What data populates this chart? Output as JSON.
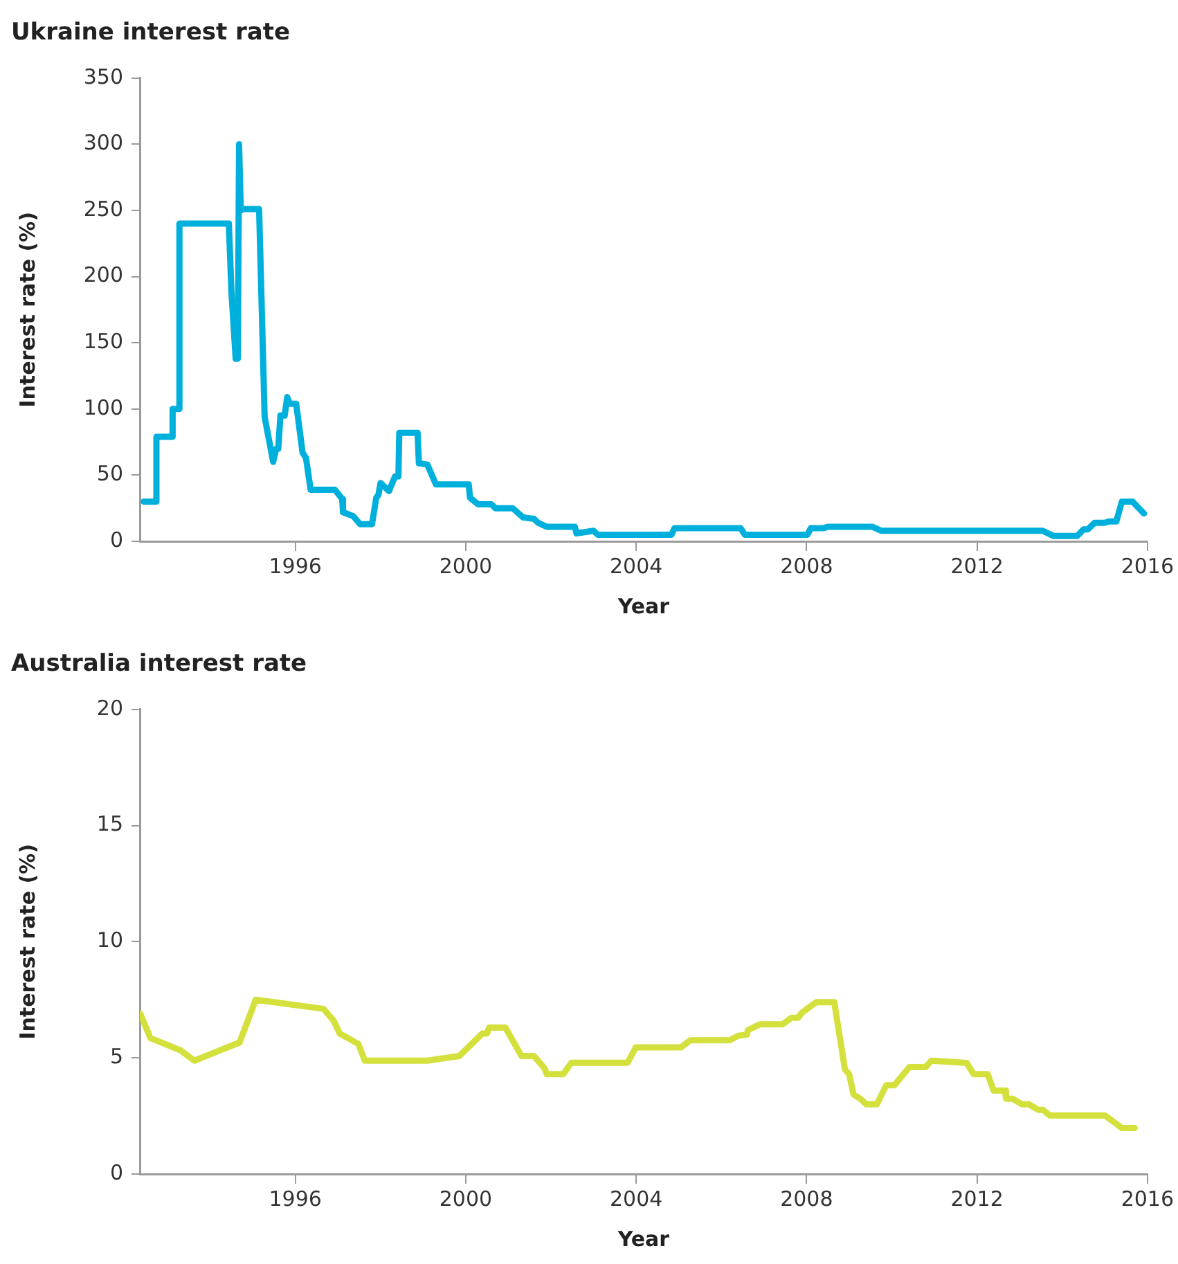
{
  "chart_data": [
    {
      "type": "line",
      "title": "Ukraine interest rate",
      "xlabel": "Year",
      "ylabel": "Interest rate (%)",
      "xlim": [
        1992.35,
        2016
      ],
      "xticks": [
        1996,
        2000,
        2004,
        2008,
        2012,
        2016
      ],
      "ylim": [
        0,
        350
      ],
      "yticks": [
        0,
        50,
        100,
        150,
        200,
        250,
        300,
        350
      ],
      "grid": false,
      "legend": false,
      "marker": "none",
      "line_style": "solid",
      "series": [
        {
          "color": "#00b0dc",
          "x": [
            1992.44,
            1992.74,
            1992.74,
            1993.12,
            1993.12,
            1993.28,
            1993.28,
            1994.44,
            1994.5,
            1994.6,
            1994.65,
            1994.68,
            1994.72,
            1994.75,
            1995.15,
            1995.28,
            1995.48,
            1995.55,
            1995.6,
            1995.65,
            1995.75,
            1995.81,
            1995.87,
            1996.02,
            1996.17,
            1996.25,
            1996.36,
            1996.93,
            1997.1,
            1997.12,
            1997.36,
            1997.52,
            1997.8,
            1997.9,
            1997.95,
            1998.0,
            1998.2,
            1998.34,
            1998.42,
            1998.44,
            1998.87,
            1998.9,
            1999.1,
            1999.3,
            2000.07,
            2000.1,
            2000.29,
            2000.6,
            2000.7,
            2001.1,
            2001.35,
            2001.6,
            2001.7,
            2001.9,
            2002.56,
            2002.6,
            2003.0,
            2003.1,
            2004.83,
            2004.9,
            2006.45,
            2006.55,
            2008.02,
            2008.1,
            2008.4,
            2008.5,
            2009.54,
            2009.75,
            2013.54,
            2013.8,
            2014.35,
            2014.5,
            2014.6,
            2014.76,
            2015.0,
            2015.1,
            2015.27,
            2015.4,
            2015.65,
            2015.92
          ],
          "values": [
            30,
            30,
            79,
            79,
            100,
            100,
            240,
            240,
            189,
            138,
            138,
            300,
            250,
            251,
            251,
            94,
            60,
            70,
            70,
            95,
            95,
            109,
            104,
            104,
            67,
            63,
            39,
            39,
            32,
            22,
            19,
            13,
            13,
            33,
            35,
            44,
            38,
            49,
            49,
            82,
            82,
            59,
            58,
            43,
            43,
            33,
            28,
            28,
            25,
            25,
            18,
            17,
            14,
            11,
            11,
            6,
            8,
            5,
            5,
            10,
            10,
            5,
            5,
            10,
            10,
            11,
            11,
            8,
            8,
            4,
            4,
            9,
            9,
            14,
            14,
            15,
            15,
            30,
            30,
            21
          ]
        }
      ]
    },
    {
      "type": "line",
      "title": "Australia interest rate",
      "xlabel": "Year",
      "ylabel": "Interest rate (%)",
      "xlim": [
        1992.35,
        2016
      ],
      "xticks": [
        1996,
        2000,
        2004,
        2008,
        2012,
        2016
      ],
      "ylim": [
        0,
        20
      ],
      "yticks": [
        0,
        5,
        10,
        15,
        20
      ],
      "grid": false,
      "legend": false,
      "marker": "none",
      "line_style": "solid",
      "series": [
        {
          "color": "#d4e03c",
          "x": [
            1992.36,
            1992.6,
            1993.3,
            1993.63,
            1994.69,
            1995.07,
            1996.66,
            1996.9,
            1997.04,
            1997.48,
            1997.63,
            1999.1,
            1999.85,
            2000.39,
            2000.5,
            2000.55,
            2000.93,
            2001.31,
            2001.6,
            2001.85,
            2001.9,
            2002.29,
            2002.48,
            2003.8,
            2003.99,
            2005.05,
            2005.27,
            2006.19,
            2006.4,
            2006.6,
            2006.62,
            2006.9,
            2007.43,
            2007.65,
            2007.8,
            2007.9,
            2008.23,
            2008.65,
            2008.9,
            2009.0,
            2009.1,
            2009.26,
            2009.4,
            2009.65,
            2009.87,
            2010.06,
            2010.41,
            2010.79,
            2010.93,
            2011.76,
            2011.92,
            2012.25,
            2012.39,
            2012.66,
            2012.68,
            2012.84,
            2013.06,
            2013.22,
            2013.44,
            2013.55,
            2013.71,
            2015.0,
            2015.16,
            2015.4,
            2015.7
          ],
          "values": [
            6.9,
            5.85,
            5.33,
            4.88,
            5.66,
            7.5,
            7.11,
            6.6,
            6.05,
            5.6,
            4.88,
            4.88,
            5.08,
            6.05,
            6.05,
            6.3,
            6.3,
            5.08,
            5.08,
            4.55,
            4.3,
            4.3,
            4.79,
            4.79,
            5.45,
            5.45,
            5.76,
            5.76,
            5.95,
            6.0,
            6.19,
            6.44,
            6.44,
            6.73,
            6.73,
            6.96,
            7.4,
            7.4,
            4.5,
            4.3,
            3.43,
            3.24,
            3.0,
            3.0,
            3.82,
            3.82,
            4.6,
            4.6,
            4.88,
            4.78,
            4.3,
            4.3,
            3.59,
            3.59,
            3.24,
            3.24,
            3.0,
            3.0,
            2.76,
            2.76,
            2.52,
            2.52,
            2.31,
            1.98,
            1.98
          ]
        }
      ]
    }
  ]
}
